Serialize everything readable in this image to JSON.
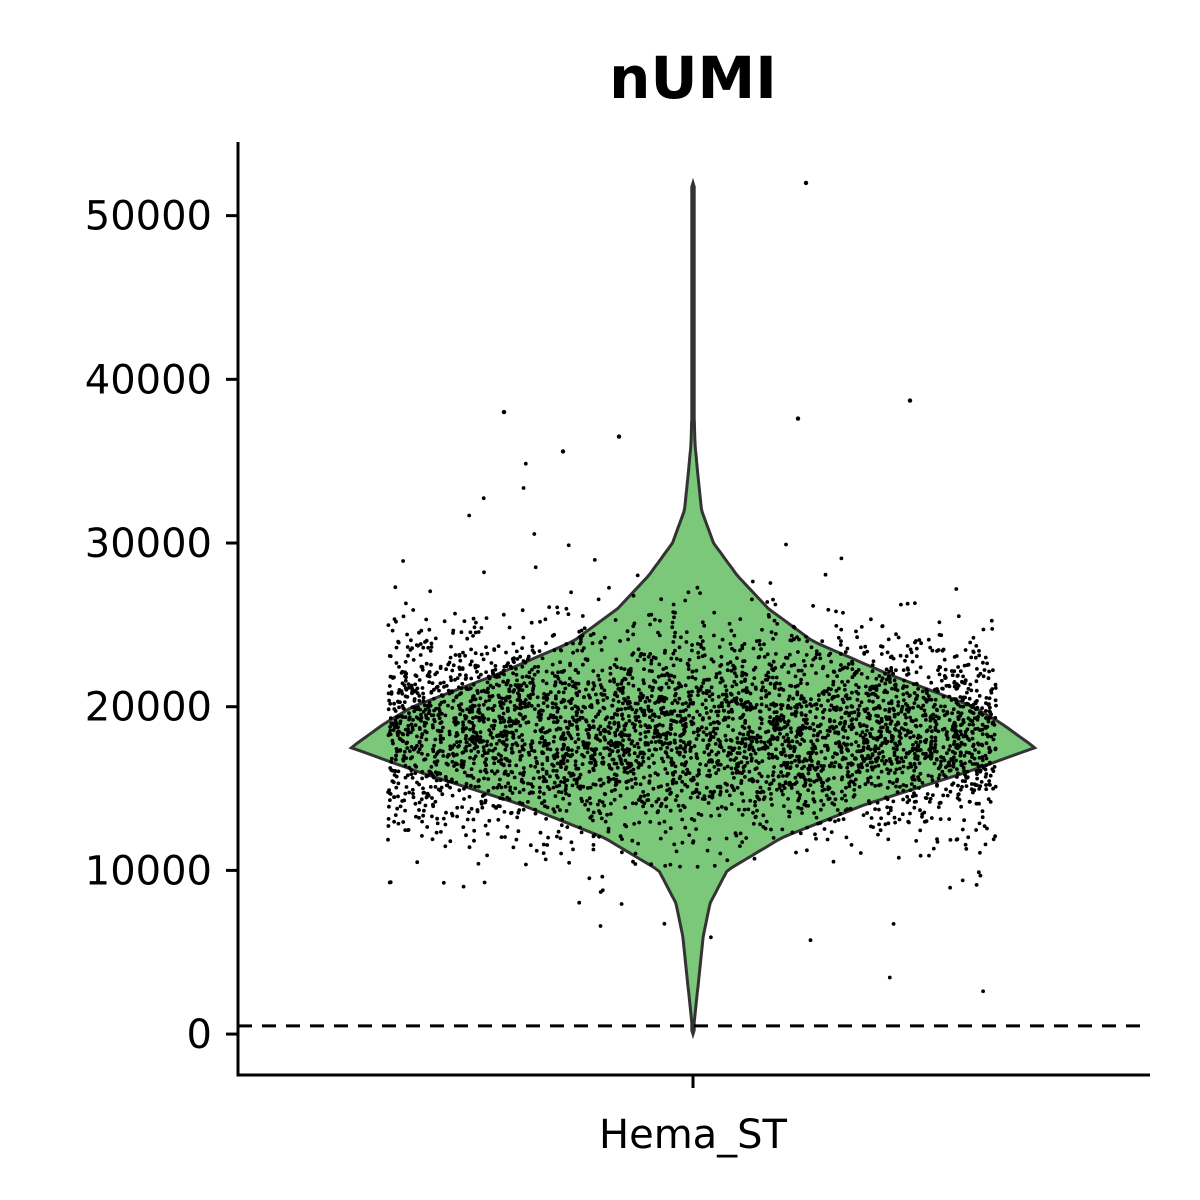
{
  "chart_data": {
    "type": "violin",
    "title": "nUMI",
    "xlabel": "",
    "ylabel": "",
    "categories": [
      "Hema_ST"
    ],
    "ylim": [
      -2500,
      54500
    ],
    "yticks": [
      0,
      10000,
      20000,
      30000,
      40000,
      50000
    ],
    "ytick_labels": [
      "0",
      "10000",
      "20000",
      "30000",
      "40000",
      "50000"
    ],
    "threshold_line": 500,
    "grid": false,
    "legend": "none",
    "violin": {
      "min": 0,
      "max": 52000,
      "mode": 17500,
      "density_profile": [
        [
          0,
          0.0
        ],
        [
          2000,
          0.01
        ],
        [
          4000,
          0.02
        ],
        [
          6000,
          0.03
        ],
        [
          8000,
          0.05
        ],
        [
          10000,
          0.1
        ],
        [
          12000,
          0.26
        ],
        [
          14000,
          0.5
        ],
        [
          16000,
          0.8
        ],
        [
          17500,
          1.0
        ],
        [
          19000,
          0.9
        ],
        [
          20000,
          0.82
        ],
        [
          22000,
          0.57
        ],
        [
          24000,
          0.35
        ],
        [
          26000,
          0.22
        ],
        [
          28000,
          0.13
        ],
        [
          30000,
          0.06
        ],
        [
          32000,
          0.025
        ],
        [
          34000,
          0.015
        ],
        [
          36000,
          0.006
        ],
        [
          38000,
          0.003
        ],
        [
          40000,
          0.001
        ],
        [
          45000,
          0.0008
        ],
        [
          52000,
          0.0
        ]
      ],
      "jitter_points": 4200,
      "outliers": [
        52000,
        38700,
        38000,
        37600,
        36500,
        35600
      ]
    },
    "colors": {
      "violin_fill": "#7bc87a",
      "violin_edge": "#333333",
      "points": "#000000",
      "threshold": "#000000"
    }
  }
}
